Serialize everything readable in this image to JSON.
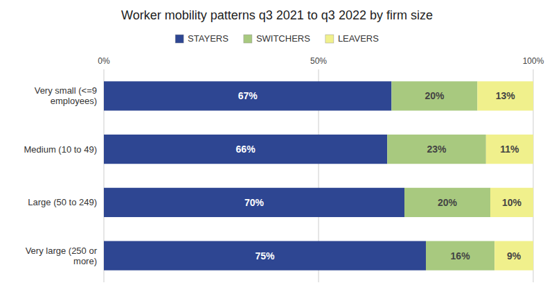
{
  "chart_data": {
    "type": "bar",
    "orientation": "horizontal",
    "stacked": true,
    "title": "Worker mobility patterns q3 2021 to q3 2022 by firm size",
    "categories": [
      "Very small (<=9\nemployees)",
      "Medium (10 to 49)",
      "Large (50 to 249)",
      "Very large (250 or\nmore)"
    ],
    "series": [
      {
        "name": "STAYERS",
        "color": "#2E4692",
        "values": [
          67,
          66,
          70,
          75
        ],
        "value_labels": [
          "67%",
          "66%",
          "70%",
          "75%"
        ]
      },
      {
        "name": "SWITCHERS",
        "color": "#A8C97F",
        "values": [
          20,
          23,
          20,
          16
        ],
        "value_labels": [
          "20%",
          "23%",
          "20%",
          "16%"
        ]
      },
      {
        "name": "LEAVERS",
        "color": "#F0F08C",
        "values": [
          13,
          11,
          10,
          9
        ],
        "value_labels": [
          "13%",
          "11%",
          "10%",
          "9%"
        ]
      }
    ],
    "xlim": [
      0,
      100
    ],
    "xticks": [
      {
        "value": 0,
        "label": "0%"
      },
      {
        "value": 50,
        "label": "50%"
      },
      {
        "value": 100,
        "label": "100%"
      }
    ],
    "grid": true,
    "data_labels": true,
    "legend": "top"
  }
}
